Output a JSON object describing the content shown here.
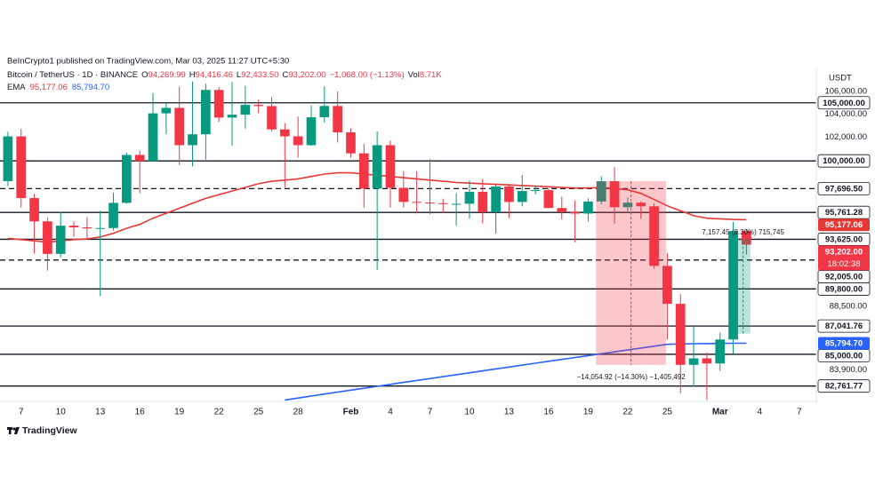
{
  "header": {
    "published": "BeInCrypto1 published on TradingView.com, Mar 03, 2025 11:27 UTC+5:30",
    "symbol": "Bitcoin / TetherUS · 1D · BINANCE",
    "ohlc": [
      {
        "key": "O",
        "value": "94,269.99"
      },
      {
        "key": "H",
        "value": "94,416.46"
      },
      {
        "key": "L",
        "value": "92,433.50"
      },
      {
        "key": "C",
        "value": "93,202.00"
      }
    ],
    "change": "−1,068.00 (−1.13%)",
    "vol_key": "Vol",
    "vol": "8.71K",
    "ema_key": "EMA",
    "currency": "USDT",
    "footer": "TradingView"
  },
  "chart_data": {
    "type": "candlestick",
    "log_scale": true,
    "grid": false,
    "up_color": "#089981",
    "down_color": "#f23645",
    "xlim": [
      -0.6,
      61.3
    ],
    "ylim": [
      81700,
      107200
    ],
    "xticks": [
      {
        "value": 1,
        "label": "7"
      },
      {
        "value": 4,
        "label": "10"
      },
      {
        "value": 7,
        "label": "13"
      },
      {
        "value": 10,
        "label": "16"
      },
      {
        "value": 13,
        "label": "19"
      },
      {
        "value": 16,
        "label": "22"
      },
      {
        "value": 19,
        "label": "25"
      },
      {
        "value": 22,
        "label": "28"
      },
      {
        "value": 26,
        "label": "Feb"
      },
      {
        "value": 29,
        "label": "4"
      },
      {
        "value": 32,
        "label": "7"
      },
      {
        "value": 35,
        "label": "10"
      },
      {
        "value": 38,
        "label": "13"
      },
      {
        "value": 41,
        "label": "16"
      },
      {
        "value": 44,
        "label": "19"
      },
      {
        "value": 47,
        "label": "22"
      },
      {
        "value": 50,
        "label": "25"
      },
      {
        "value": 54,
        "label": "Mar"
      },
      {
        "value": 57,
        "label": "4"
      },
      {
        "value": 60,
        "label": "7"
      }
    ],
    "yticks": [
      {
        "value": 106000,
        "label": "106,000.00"
      },
      {
        "value": 104000,
        "label": "104,000.00"
      },
      {
        "value": 102000,
        "label": "102,000.00"
      },
      {
        "value": 88500,
        "label": "88,500.00"
      },
      {
        "value": 83900,
        "label": "83,900.00"
      }
    ],
    "x": [
      0,
      1,
      2,
      3,
      4,
      5,
      6,
      7,
      8,
      9,
      10,
      11,
      12,
      13,
      14,
      15,
      16,
      17,
      18,
      19,
      20,
      21,
      22,
      23,
      24,
      25,
      26,
      27,
      28,
      29,
      30,
      31,
      32,
      33,
      34,
      35,
      36,
      37,
      38,
      39,
      40,
      41,
      42,
      43,
      44,
      45,
      46,
      47,
      48,
      49,
      50,
      51,
      52,
      53,
      54,
      55,
      56
    ],
    "open": [
      98314,
      102078,
      96922,
      95043,
      92484,
      94701,
      94566,
      94488,
      94516,
      96534,
      100504,
      99987,
      104077,
      104556,
      101331,
      102260,
      106143,
      103706,
      103960,
      104819,
      104714,
      102682,
      102087,
      101332,
      103733,
      104722,
      102429,
      100635,
      97700,
      101328,
      97763,
      96612,
      96554,
      96506,
      96444,
      96462,
      97430,
      95778,
      97869,
      96608,
      97500,
      97569,
      96118,
      95780,
      95671,
      96644,
      98305,
      96181,
      96551,
      96258,
      91552,
      88680,
      84250,
      84708,
      84349,
      86064,
      94269.99
    ],
    "high": [
      102480,
      102724,
      97258,
      95349,
      95836,
      95050,
      95375,
      95900,
      97371,
      100681,
      100873,
      105865,
      104988,
      106422,
      106900,
      106700,
      106394,
      106850,
      106500,
      105286,
      105500,
      103221,
      103800,
      104782,
      106457,
      106012,
      102783,
      101456,
      102500,
      101732,
      99149,
      99120,
      100137,
      96880,
      97323,
      98345,
      98500,
      98119,
      98076,
      98826,
      97972,
      97732,
      97046,
      96753,
      96899,
      98711,
      99475,
      96980,
      96650,
      96500,
      92540,
      89414,
      87000,
      85120,
      86558,
      95000,
      94416.46
    ],
    "low": [
      97900,
      96132,
      92500,
      91200,
      92206,
      93831,
      93690,
      89256,
      94316,
      96465,
      97300,
      99950,
      102277,
      99651,
      99550,
      100119,
      103339,
      101262,
      102750,
      104106,
      102520,
      97777,
      100272,
      101256,
      103280,
      101560,
      100279,
      96150,
      91231,
      96150,
      96155,
      95676,
      95620,
      95688,
      94713,
      95256,
      94876,
      94088,
      95300,
      96252,
      97223,
      96101,
      95205,
      93388,
      95029,
      96415,
      94871,
      95770,
      95257,
      91350,
      86050,
      82256,
      82716,
      81800,
      83824,
      85050,
      92433.5
    ],
    "close": [
      102078,
      96922,
      95043,
      92484,
      94701,
      94566,
      94488,
      94516,
      96534,
      100504,
      99987,
      104077,
      104556,
      101331,
      102260,
      106143,
      103706,
      103960,
      104819,
      104714,
      102682,
      102087,
      101332,
      103733,
      104722,
      102429,
      100635,
      97700,
      101328,
      97763,
      96612,
      96554,
      96506,
      96444,
      96462,
      97430,
      95778,
      97869,
      96608,
      97500,
      97569,
      96118,
      95780,
      95671,
      96644,
      98305,
      96181,
      96551,
      96258,
      91552,
      88680,
      84250,
      84708,
      84349,
      86064,
      94270,
      93202
    ],
    "series": [
      {
        "color": "#e53935",
        "last_label": "95,177.06",
        "values": [
          93700,
          93600,
          93500,
          93400,
          93500,
          93600,
          93650,
          93800,
          94100,
          94500,
          94800,
          95300,
          95700,
          96100,
          96500,
          96900,
          97200,
          97500,
          97800,
          98100,
          98300,
          98400,
          98500,
          98700,
          98900,
          99000,
          99000,
          98900,
          98800,
          98700,
          98600,
          98500,
          98400,
          98300,
          98200,
          98150,
          98100,
          98050,
          98000,
          97950,
          97900,
          97850,
          97800,
          97750,
          97750,
          97800,
          97700,
          97600,
          97300,
          96800,
          96300,
          95900,
          95500,
          95300,
          95250,
          95200,
          95177.06
        ]
      },
      {
        "color": "#2962ff",
        "last_label": "85,794.70",
        "values": [
          null,
          null,
          null,
          null,
          null,
          null,
          null,
          null,
          null,
          null,
          null,
          null,
          null,
          null,
          null,
          null,
          null,
          null,
          null,
          null,
          null,
          81800,
          81935,
          82070,
          82205,
          82340,
          82475,
          82610,
          82745,
          82880,
          83015,
          83150,
          83285,
          83420,
          83555,
          83690,
          83825,
          83960,
          84095,
          84230,
          84365,
          84500,
          84635,
          84770,
          84905,
          85040,
          85175,
          85310,
          85445,
          85580,
          85715,
          85740,
          85760,
          85770,
          85780,
          85790,
          85794.7
        ]
      }
    ],
    "levels": [
      {
        "value": 105000,
        "label": "105,000.00"
      },
      {
        "value": 100000,
        "label": "100,000.00"
      },
      {
        "value": 97696.5,
        "label": "97,696.50",
        "dashed": true
      },
      {
        "value": 95761.28,
        "label": "95,761.28"
      },
      {
        "value": 93625,
        "label": "93,625.00"
      },
      {
        "value": 92005,
        "label": "92,005.00",
        "dashed": true
      },
      {
        "value": 89800,
        "label": "89,800.00"
      },
      {
        "value": 87041.76,
        "label": "87,041.76"
      },
      {
        "value": 85000,
        "label": "85,000.00"
      },
      {
        "value": 82761.77,
        "label": "82,761.77"
      }
    ],
    "measures": [
      {
        "x": [
          44.6,
          49.9
        ],
        "price": [
          98305,
          84250.08
        ],
        "label": "−14,054.92 (−14.30%) −1,405,492"
      },
      {
        "x": [
          55.2,
          56.3
        ],
        "price": [
          86492.55,
          93650
        ],
        "label": "7,157.45 (8.30%) 715,745"
      }
    ],
    "countdown": "18:02:38"
  }
}
